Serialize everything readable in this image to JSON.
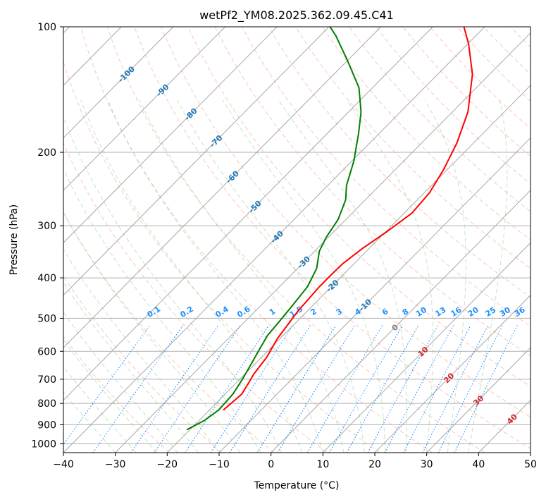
{
  "chart_data": {
    "type": "line",
    "subtype": "skew-t log-p diagram",
    "title": "wetPf2_YM08.2025.362.09.45.C41",
    "xlabel": "Temperature (°C)",
    "ylabel": "Pressure (hPa)",
    "xlim": [
      -40,
      50
    ],
    "ylim": [
      1050,
      100
    ],
    "x_ticks": [
      -40,
      -30,
      -20,
      -10,
      0,
      10,
      20,
      30,
      40,
      50
    ],
    "y_ticks": [
      100,
      200,
      300,
      400,
      500,
      600,
      700,
      800,
      900,
      1000
    ],
    "y_scale": "log",
    "grid": true,
    "series": [
      {
        "name": "Temperature",
        "color": "#ff0000",
        "points": [
          {
            "p": 830,
            "t": -17.3
          },
          {
            "p": 760,
            "t": -16.8
          },
          {
            "p": 720,
            "t": -17.5
          },
          {
            "p": 680,
            "t": -18.3
          },
          {
            "p": 620,
            "t": -19.0
          },
          {
            "p": 560,
            "t": -20.5
          },
          {
            "p": 480,
            "t": -21.8
          },
          {
            "p": 420,
            "t": -22.3
          },
          {
            "p": 390,
            "t": -22.3
          },
          {
            "p": 370,
            "t": -22.2
          },
          {
            "p": 340,
            "t": -21.3
          },
          {
            "p": 310,
            "t": -19.8
          },
          {
            "p": 280,
            "t": -18.5
          },
          {
            "p": 250,
            "t": -19.0
          },
          {
            "p": 220,
            "t": -20.7
          },
          {
            "p": 190,
            "t": -23.2
          },
          {
            "p": 160,
            "t": -27.0
          },
          {
            "p": 130,
            "t": -33.3
          },
          {
            "p": 110,
            "t": -39.8
          },
          {
            "p": 100,
            "t": -44.0
          }
        ]
      },
      {
        "name": "Dewpoint",
        "color": "#008000",
        "points": [
          {
            "p": 925,
            "t": -20.6
          },
          {
            "p": 880,
            "t": -19.0
          },
          {
            "p": 830,
            "t": -18.2
          },
          {
            "p": 760,
            "t": -18.5
          },
          {
            "p": 700,
            "t": -19.5
          },
          {
            "p": 640,
            "t": -20.8
          },
          {
            "p": 590,
            "t": -22.0
          },
          {
            "p": 550,
            "t": -23.0
          },
          {
            "p": 500,
            "t": -23.5
          },
          {
            "p": 460,
            "t": -24.0
          },
          {
            "p": 420,
            "t": -24.6
          },
          {
            "p": 380,
            "t": -26.3
          },
          {
            "p": 345,
            "t": -29.1
          },
          {
            "p": 320,
            "t": -30.4
          },
          {
            "p": 290,
            "t": -31.5
          },
          {
            "p": 260,
            "t": -33.8
          },
          {
            "p": 240,
            "t": -36.4
          },
          {
            "p": 210,
            "t": -39.6
          },
          {
            "p": 180,
            "t": -44.0
          },
          {
            "p": 160,
            "t": -47.6
          },
          {
            "p": 140,
            "t": -52.6
          },
          {
            "p": 120,
            "t": -60.2
          },
          {
            "p": 105,
            "t": -67.0
          },
          {
            "p": 100,
            "t": -69.8
          }
        ]
      }
    ],
    "dry_adiabat_labels": [
      "-100",
      "-90",
      "-80",
      "-70",
      "-60",
      "-50",
      "-40",
      "-30",
      "-20",
      "-10",
      "0",
      "10",
      "20",
      "30",
      "40"
    ],
    "mixing_ratio_labels": [
      "0.1",
      "0.2",
      "0.4",
      "0.6",
      "1",
      "1.5",
      "2",
      "3",
      "4",
      "6",
      "8",
      "10",
      "13",
      "16",
      "20",
      "25",
      "30",
      "36"
    ]
  }
}
